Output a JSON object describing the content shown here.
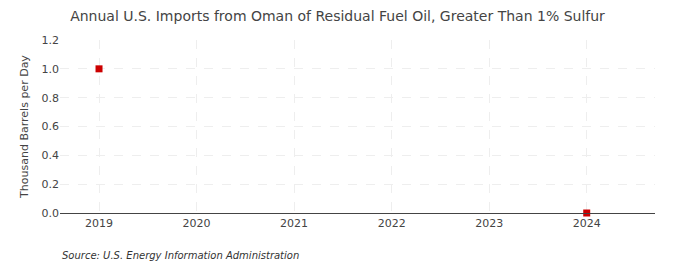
{
  "chart_data": {
    "type": "scatter",
    "title": "Annual U.S. Imports from Oman of Residual Fuel Oil, Greater Than 1% Sulfur",
    "ylabel": "Thousand Barrels per Day",
    "source": "Source: U.S. Energy Information Administration",
    "x": [
      2019,
      2024
    ],
    "values": [
      1.0,
      0.0
    ],
    "color": "#cc0000",
    "marker": "square",
    "xlim": [
      2018.6,
      2024.7
    ],
    "xticks": [
      2019,
      2020,
      2021,
      2022,
      2023,
      2024
    ],
    "ylim": [
      0.0,
      1.2
    ],
    "yticks": [
      {
        "value": 0.0,
        "label": "0.0"
      },
      0.2,
      0.4,
      0.6,
      0.8,
      {
        "value": 1.0,
        "label": "1.0"
      },
      1.2
    ],
    "grid": true
  }
}
